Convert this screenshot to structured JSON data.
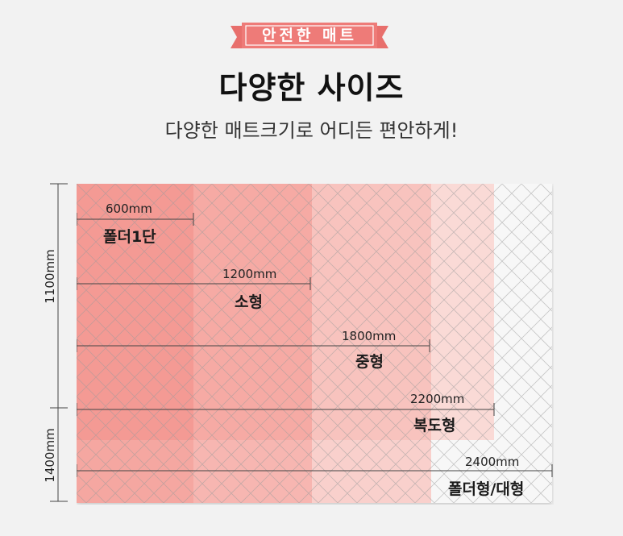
{
  "badge": "안전한 매트",
  "title": "다양한 사이즈",
  "subtitle": "다양한 매트크기로 어디든 편안하게!",
  "sizes": [
    {
      "width": "600mm",
      "name": "폴더1단"
    },
    {
      "width": "1200mm",
      "name": "소형"
    },
    {
      "width": "1800mm",
      "name": "중형"
    },
    {
      "width": "2200mm",
      "name": "복도형"
    },
    {
      "width": "2400mm",
      "name": "폴더형/대형"
    }
  ],
  "heights": {
    "top": "1100mm",
    "bottom": "1400mm"
  },
  "colors": {
    "badge": "#ee7b78",
    "tier1": "#f49a94",
    "tier2": "#f6aaa4",
    "tier3": "#f8c3be",
    "tier4": "#fadad6",
    "base": "#f7f7f7",
    "pattern": "#9a9a9a"
  }
}
